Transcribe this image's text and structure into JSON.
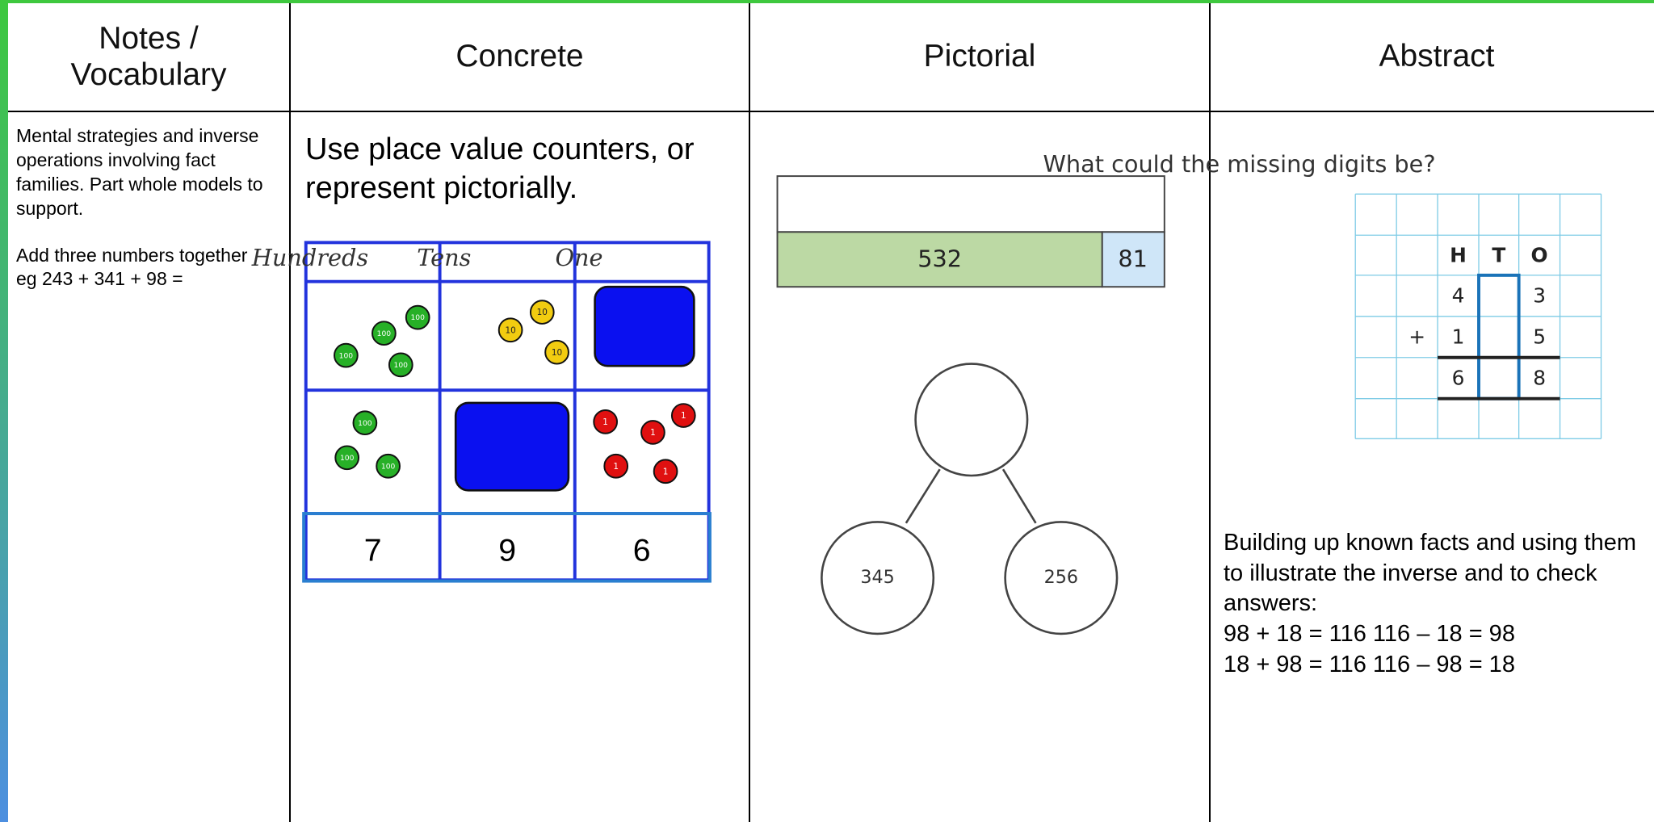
{
  "header": {
    "columns": [
      "Notes / Vocabulary",
      "Concrete",
      "Pictorial",
      "Abstract"
    ]
  },
  "notes": {
    "paragraphs": [
      "Mental strategies and inverse operations involving fact families. Part whole models to support.",
      "Add three numbers together",
      "eg 243 + 341 + 98 ="
    ]
  },
  "concrete": {
    "instruction": "Use place value counters, or represent pictorially.",
    "place_value_chart": {
      "headers": [
        "Hundreds",
        "Tens",
        "One"
      ],
      "counter_labels": [
        "100",
        "10",
        "1"
      ],
      "totals": [
        "7",
        "9",
        "6"
      ]
    }
  },
  "pictorial": {
    "bar_model": {
      "parts": [
        "532",
        "81"
      ]
    },
    "part_whole": {
      "parts": [
        "345",
        "256"
      ]
    }
  },
  "abstract": {
    "question": "What could the missing digits be?",
    "grid": {
      "headers": [
        "H",
        "T",
        "O"
      ],
      "first": {
        "hundreds": "4",
        "ones": "3"
      },
      "second": {
        "sign": "+",
        "hundreds": "1",
        "ones": "5"
      },
      "sum": {
        "hundreds": "6",
        "ones": "8"
      }
    },
    "explanation": "Building up known facts and using them to illustrate the inverse and to check answers:",
    "facts": [
      "98 + 18 = 116 116 – 18 = 98",
      "18 + 98 = 116 116 – 98 = 18"
    ]
  }
}
